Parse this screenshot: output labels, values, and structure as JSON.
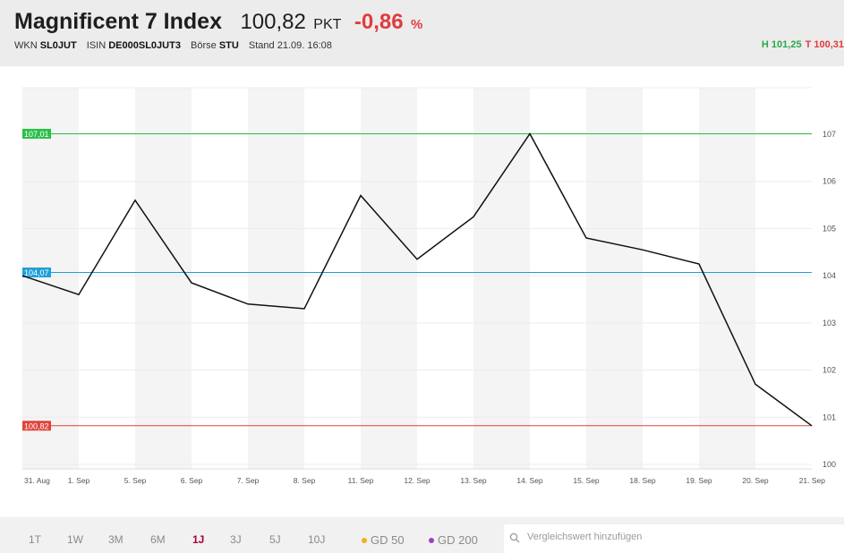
{
  "header": {
    "title": "Magnificent 7 Index",
    "price": "100,82",
    "unit": "PKT",
    "change": "-0,86",
    "change_unit": "%",
    "wkn_label": "WKN",
    "wkn": "SL0JUT",
    "isin_label": "ISIN",
    "isin": "DE000SL0JUT3",
    "exchange_label": "Börse",
    "exchange": "STU",
    "stand_label": "Stand",
    "stand": "21.09. 16:08",
    "high": "H 101,25",
    "low": "T 100,31"
  },
  "chart_data": {
    "type": "line",
    "x": [
      "31. Aug",
      "1. Sep",
      "5. Sep",
      "6. Sep",
      "7. Sep",
      "8. Sep",
      "11. Sep",
      "12. Sep",
      "13. Sep",
      "14. Sep",
      "15. Sep",
      "18. Sep",
      "19. Sep",
      "20. Sep",
      "21. Sep"
    ],
    "series": [
      {
        "values": [
          104.0,
          103.6,
          105.6,
          103.85,
          103.4,
          103.3,
          105.7,
          104.35,
          105.25,
          107.01,
          104.8,
          104.55,
          104.25,
          101.7,
          100.82
        ]
      }
    ],
    "ylim": [
      100,
      107
    ],
    "yticks": [
      "100",
      "101",
      "102",
      "103",
      "104",
      "105",
      "106",
      "107"
    ],
    "reference_lines": [
      {
        "value": 107.01,
        "label": "107,01",
        "color": "#2bbf4a"
      },
      {
        "value": 104.07,
        "label": "104,07",
        "color": "#1e9fd6"
      },
      {
        "value": 100.82,
        "label": "100,82",
        "color": "#e0443a"
      }
    ],
    "line_color": "#111111",
    "grid": true
  },
  "toolbar": {
    "ranges": [
      "1T",
      "1W",
      "3M",
      "6M",
      "1J",
      "3J",
      "5J",
      "10J"
    ],
    "active_range": "1J",
    "gd50": "GD 50",
    "gd50_color": "#f2b01e",
    "gd200": "GD 200",
    "gd200_color": "#a23cc2",
    "search_placeholder": "Vergleichswert hinzufügen"
  }
}
